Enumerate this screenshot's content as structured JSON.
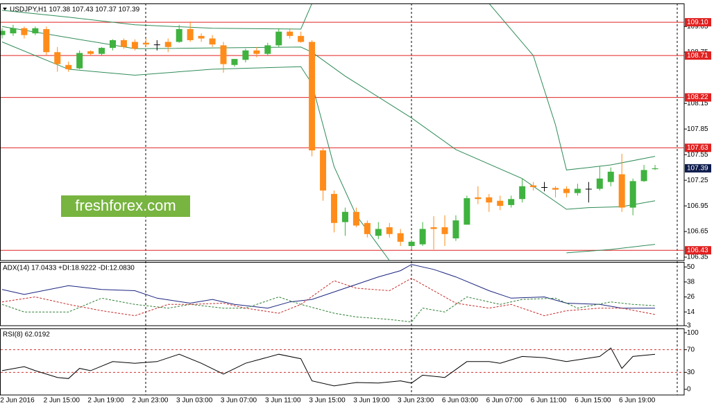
{
  "chart_data": [
    {
      "type": "candlestick",
      "title": "USDJPY,H1  107.38 107.43 107.37 107.39",
      "annotation": "freshforex.com",
      "categories": [
        null,
        "2 Jun 2016",
        null,
        null,
        null,
        "2 Jun 15:00",
        null,
        null,
        null,
        "2 Jun 19:00",
        null,
        null,
        null,
        "2 Jun 23:00",
        null,
        null,
        null,
        "3 Jun 03:00",
        null,
        null,
        null,
        "3 Jun 07:00",
        null,
        null,
        null,
        "3 Jun 11:00",
        null,
        null,
        null,
        "3 Jun 15:00",
        null,
        null,
        null,
        "3 Jun 19:00",
        null,
        null,
        null,
        "3 Jun 23:00",
        null,
        null,
        null,
        "6 Jun 03:00",
        null,
        null,
        null,
        "6 Jun 07:00",
        null,
        null,
        null,
        "6 Jun 11:00",
        null,
        null,
        null,
        "6 Jun 15:00",
        null,
        null,
        null,
        "6 Jun 19:00",
        null,
        null
      ],
      "open": [
        108.95,
        108.97,
        109.03,
        108.97,
        109.02,
        108.75,
        108.6,
        108.56,
        108.76,
        108.73,
        108.8,
        108.89,
        108.87,
        108.86,
        108.84,
        108.87,
        108.87,
        109.02,
        108.94,
        108.91,
        108.83,
        108.6,
        108.66,
        108.77,
        108.73,
        108.83,
        108.99,
        108.94,
        108.87,
        107.6,
        107.09,
        106.76,
        106.88,
        106.75,
        106.6,
        106.7,
        106.63,
        106.48,
        106.5,
        106.7,
        106.7,
        106.57,
        106.73,
        107.05,
        107.05,
        107.01,
        106.96,
        107.03,
        107.19,
        107.17,
        107.16,
        107.15,
        107.1,
        107.15,
        107.15,
        107.23,
        107.32,
        106.93,
        107.24,
        107.38
      ],
      "high": [
        109.03,
        109.07,
        109.05,
        109.05,
        109.05,
        108.81,
        108.64,
        108.77,
        108.77,
        108.81,
        108.9,
        108.91,
        108.9,
        108.91,
        108.89,
        108.91,
        109.07,
        109.11,
        108.97,
        108.95,
        108.87,
        108.67,
        108.79,
        108.81,
        108.86,
        109.03,
        109.03,
        108.99,
        108.89,
        107.63,
        107.13,
        106.93,
        106.93,
        106.78,
        106.76,
        106.75,
        106.68,
        106.55,
        106.76,
        106.83,
        106.84,
        106.84,
        107.07,
        107.18,
        107.09,
        107.07,
        107.07,
        107.27,
        107.23,
        107.23,
        107.18,
        107.18,
        107.21,
        107.23,
        107.41,
        107.4,
        107.56,
        107.27,
        107.43,
        107.43
      ],
      "low": [
        108.91,
        108.94,
        108.91,
        108.95,
        108.71,
        108.52,
        108.52,
        108.55,
        108.71,
        108.71,
        108.77,
        108.79,
        108.77,
        108.81,
        108.77,
        108.75,
        108.86,
        108.87,
        108.87,
        108.81,
        108.51,
        108.58,
        108.63,
        108.69,
        108.71,
        108.81,
        108.91,
        108.86,
        107.53,
        107.01,
        106.64,
        106.6,
        106.7,
        106.58,
        106.56,
        106.58,
        106.48,
        106.44,
        106.48,
        106.44,
        106.48,
        106.54,
        106.73,
        106.97,
        106.88,
        106.9,
        106.93,
        106.99,
        107.13,
        107.12,
        107.05,
        107.05,
        107.07,
        106.99,
        107.13,
        107.18,
        106.88,
        106.84,
        107.23,
        107.37
      ],
      "close": [
        109.0,
        109.03,
        108.95,
        109.03,
        108.75,
        108.61,
        108.55,
        108.74,
        108.73,
        108.8,
        108.89,
        108.81,
        108.79,
        108.84,
        108.84,
        108.81,
        109.02,
        108.89,
        108.91,
        108.84,
        108.61,
        108.67,
        108.77,
        108.73,
        108.83,
        108.99,
        108.94,
        108.87,
        107.6,
        107.13,
        106.75,
        106.88,
        106.72,
        106.62,
        106.68,
        106.62,
        106.53,
        106.53,
        106.68,
        106.68,
        106.62,
        106.78,
        107.04,
        107.03,
        106.99,
        106.95,
        107.03,
        107.18,
        107.17,
        107.17,
        107.14,
        107.1,
        107.15,
        107.15,
        107.27,
        107.35,
        106.93,
        107.24,
        107.37,
        107.39
      ],
      "up_color": "#3fb23f",
      "down_color": "#ff8c1a",
      "doji_color": "#000000",
      "bands": [
        {
          "color": "#2e8b57",
          "x": [
            0,
            6,
            12,
            19,
            27,
            28,
            36,
            44,
            48,
            50,
            51,
            53,
            55,
            59
          ],
          "values": [
            109.24,
            109.16,
            109.07,
            109.03,
            109.02,
            109.32,
            null,
            109.32,
            108.71,
            107.9,
            107.37,
            107.4,
            107.43,
            107.53
          ]
        },
        {
          "color": "#2e8b57",
          "x": [
            0,
            12,
            27,
            28,
            31,
            37,
            41,
            47,
            51,
            53,
            56,
            59
          ],
          "values": [
            109.05,
            108.79,
            108.81,
            108.75,
            108.47,
            107.98,
            107.61,
            107.27,
            106.91,
            106.93,
            106.94,
            107.01
          ]
        },
        {
          "color": "#2e8b57",
          "x": [
            0,
            6,
            12,
            19,
            27,
            28,
            30,
            32,
            35,
            36,
            51,
            55,
            59
          ],
          "values": [
            108.87,
            108.55,
            108.48,
            108.55,
            108.58,
            108.38,
            107.41,
            106.84,
            106.31,
            null,
            106.4,
            106.44,
            106.5
          ]
        }
      ],
      "levels": [
        {
          "value": 109.1,
          "label": "109.10"
        },
        108.71,
        108.22,
        107.63,
        106.43
      ],
      "level_color": "#e02020",
      "last_price_color": "#0d1b4c",
      "ylim": [
        106.31,
        109.32
      ],
      "yticks": [
        109.05,
        108.75,
        108.15,
        107.85,
        107.55,
        107.25,
        106.95,
        106.65,
        106.35
      ]
    },
    {
      "type": "line",
      "title": "ADX(14) 17.0433 +DI:18.9222 -DI:12.0830",
      "ylim": [
        3,
        54
      ],
      "yticks": [
        50,
        38,
        26,
        14,
        3
      ],
      "series": [
        {
          "color": "#1a237e",
          "dash": false,
          "x": [
            0,
            2,
            6,
            9,
            12,
            14,
            17,
            19,
            21,
            24,
            26,
            28,
            31,
            34,
            36,
            37,
            39,
            41,
            44,
            46,
            49,
            51,
            54,
            56,
            59
          ],
          "values": [
            32,
            28,
            35,
            32,
            31,
            25,
            21,
            24,
            20,
            17,
            22,
            24,
            33,
            42,
            47,
            52,
            48,
            42,
            31,
            25,
            26,
            21,
            20,
            17,
            17
          ]
        },
        {
          "color": "#2e7d32",
          "dash": true,
          "x": [
            0,
            2,
            6,
            9,
            12,
            15,
            17,
            20,
            22,
            25,
            27,
            30,
            32,
            35,
            37,
            38,
            40,
            42,
            45,
            47,
            50,
            52,
            55,
            57,
            59
          ],
          "values": [
            20,
            14,
            14,
            25,
            20,
            17,
            20,
            17,
            17,
            26,
            20,
            13,
            10,
            8,
            6,
            17,
            14,
            26,
            20,
            24,
            25,
            17,
            22,
            20,
            19
          ]
        },
        {
          "color": "#c62828",
          "dash": true,
          "x": [
            0,
            3,
            6,
            9,
            12,
            15,
            17,
            20,
            22,
            25,
            27,
            30,
            32,
            35,
            37,
            39,
            41,
            44,
            46,
            49,
            51,
            54,
            56,
            59
          ],
          "values": [
            22,
            26,
            20,
            15,
            11,
            20,
            20,
            21,
            17,
            13,
            20,
            39,
            33,
            31,
            41,
            31,
            21,
            17,
            20,
            11,
            15,
            17,
            17,
            12
          ]
        }
      ]
    },
    {
      "type": "line",
      "title": "RSI(8) 62.0192",
      "ylim": [
        -10,
        107.5
      ],
      "yticks": [
        100,
        70,
        30,
        0
      ],
      "levels": [
        70,
        30
      ],
      "level_color": "#d32f2f",
      "series": [
        {
          "color": "#000000",
          "dash": false,
          "x": [
            0,
            2,
            3,
            5,
            6,
            7,
            8,
            10,
            12,
            14,
            16,
            18,
            20,
            22,
            25,
            27,
            28,
            30,
            32,
            34,
            36,
            37,
            38,
            40,
            42,
            44,
            45,
            47,
            49,
            51,
            54,
            55,
            56,
            57,
            59
          ],
          "values": [
            33,
            40,
            33,
            21,
            19,
            37,
            33,
            49,
            46,
            49,
            62,
            46,
            27,
            46,
            62,
            54,
            15,
            6,
            12,
            11,
            15,
            11,
            25,
            21,
            49,
            49,
            46,
            58,
            56,
            49,
            58,
            73,
            37,
            58,
            62
          ]
        }
      ]
    }
  ]
}
